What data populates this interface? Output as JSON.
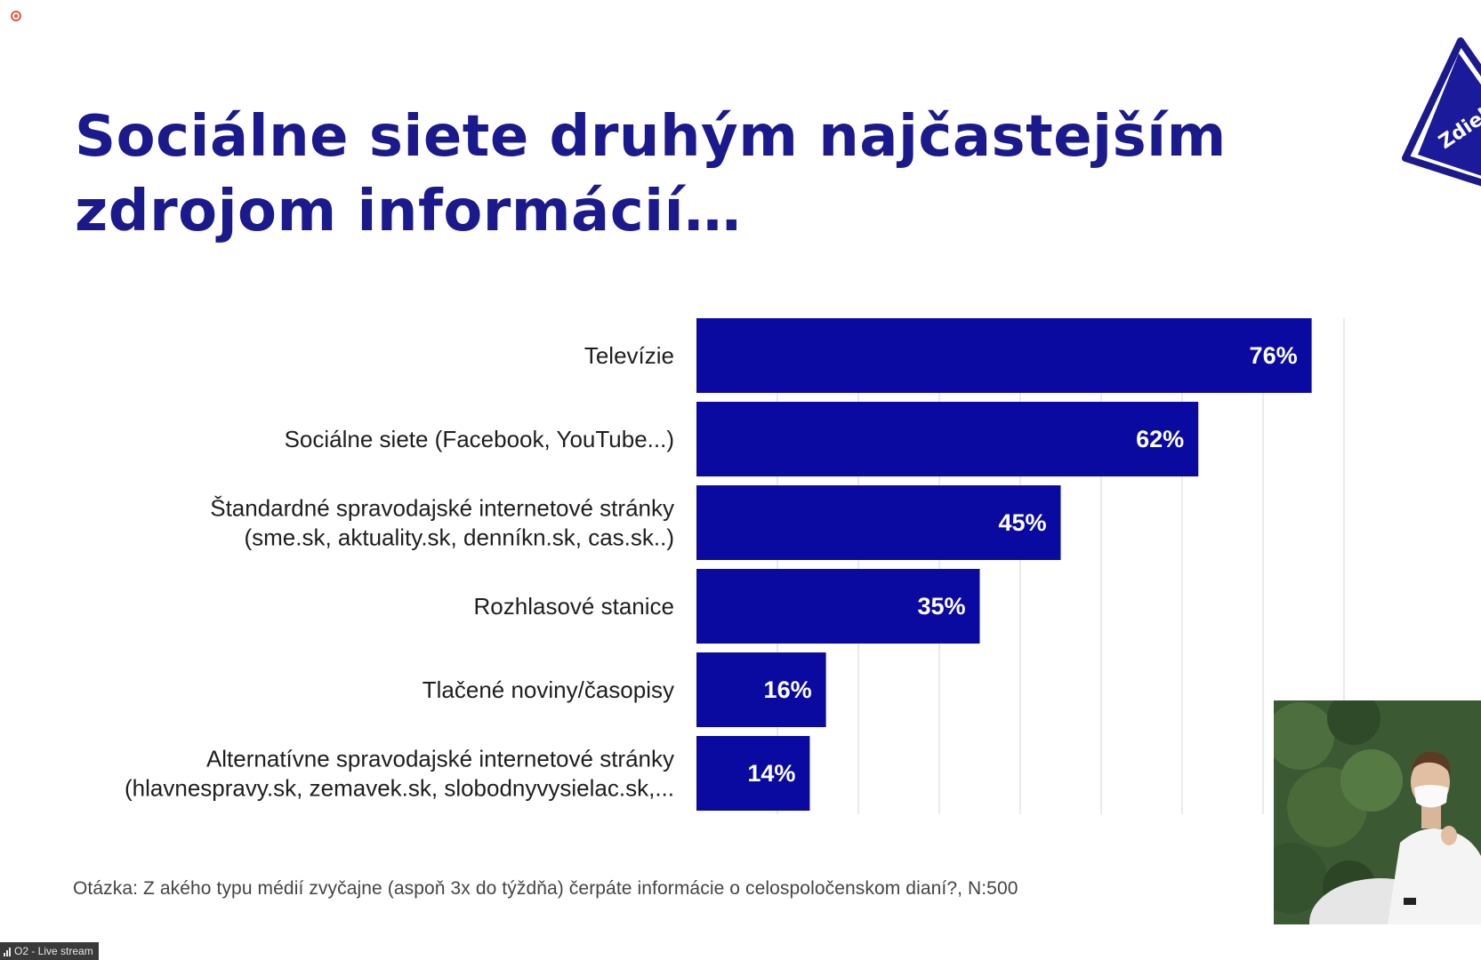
{
  "slide": {
    "title_line1": "Sociálne siete druhým najčastejším",
    "title_line2": "zdrojom informácií…",
    "corner_badge": "Zdiel",
    "footnote": "Otázka: Z akého typu médií zvyčajne (aspoň 3x do týždňa) čerpáte informácie o celospoločenskom dianí?, N:500"
  },
  "chart_data": {
    "type": "bar",
    "orientation": "horizontal",
    "categories": [
      [
        "Televízie"
      ],
      [
        "Sociálne siete (Facebook, YouTube...)"
      ],
      [
        "Štandardné spravodajské internetové stránky",
        "(sme.sk, aktuality.sk, denníkn.sk, cas.sk..)"
      ],
      [
        "Rozhlasové stanice"
      ],
      [
        "Tlačené noviny/časopisy"
      ],
      [
        "Alternatívne spravodajské internetové stránky",
        "(hlavnespravy.sk, zemavek.sk, slobodnyvysielac.sk,..."
      ]
    ],
    "values": [
      76,
      62,
      45,
      35,
      16,
      14
    ],
    "value_labels": [
      "76%",
      "62%",
      "45%",
      "35%",
      "16%",
      "14%"
    ],
    "xlim": [
      0,
      80
    ],
    "grid": true,
    "bar_color": "#0a0aa0",
    "label_color": "#ffffff"
  },
  "status": {
    "stream_label": "O2 - Live stream"
  },
  "colors": {
    "title": "#1a1a8c",
    "bar": "#0a0aa0"
  }
}
